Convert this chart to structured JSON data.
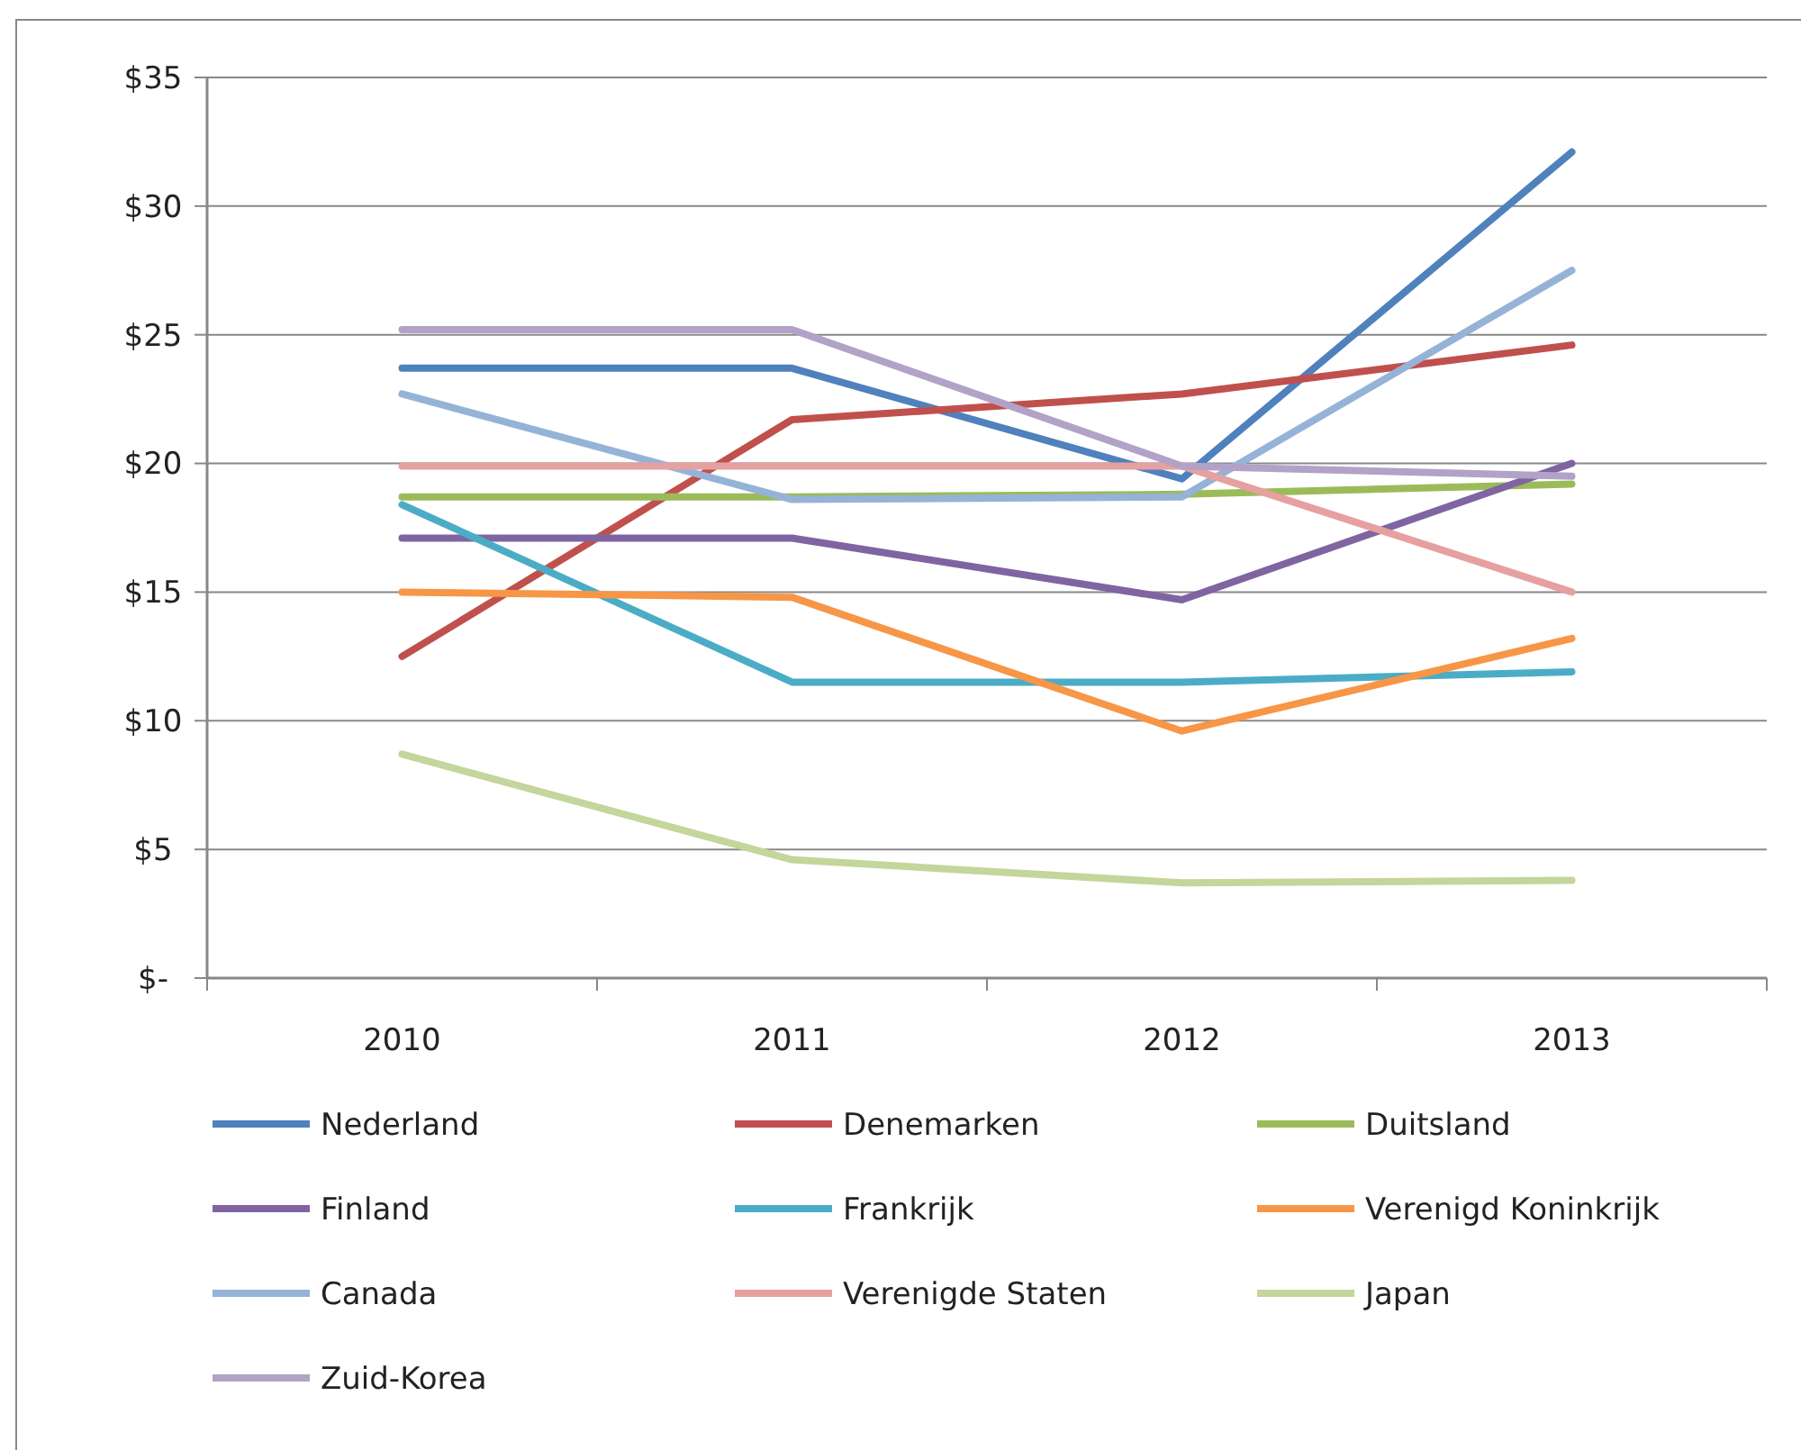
{
  "chart_data": {
    "type": "line",
    "categories": [
      "2010",
      "2011",
      "2012",
      "2013"
    ],
    "ylim": [
      0,
      35
    ],
    "yticks": [
      {
        "value": 0,
        "label": "$-"
      },
      {
        "value": 5,
        "label": "$5"
      },
      {
        "value": 10,
        "label": "$10"
      },
      {
        "value": 15,
        "label": "$15"
      },
      {
        "value": 20,
        "label": "$20"
      },
      {
        "value": 25,
        "label": "$25"
      },
      {
        "value": 30,
        "label": "$30"
      },
      {
        "value": 35,
        "label": "$35"
      }
    ],
    "grid": "y",
    "legend": "bottom",
    "marker": "none",
    "line_style": "solid",
    "series": [
      {
        "name": "Nederland",
        "color": "#4f81bd",
        "values": [
          23.7,
          23.7,
          19.4,
          32.1
        ]
      },
      {
        "name": "Denemarken",
        "color": "#c0504d",
        "values": [
          12.5,
          21.7,
          22.7,
          24.6
        ]
      },
      {
        "name": "Duitsland",
        "color": "#9bbb59",
        "values": [
          18.7,
          18.7,
          18.8,
          19.2
        ]
      },
      {
        "name": "Finland",
        "color": "#8064a2",
        "values": [
          17.1,
          17.1,
          14.7,
          20.0
        ]
      },
      {
        "name": "Frankrijk",
        "color": "#4bacc6",
        "values": [
          18.4,
          11.5,
          11.5,
          11.9
        ]
      },
      {
        "name": "Verenigd Koninkrijk",
        "color": "#f79646",
        "values": [
          15.0,
          14.8,
          9.6,
          13.2
        ]
      },
      {
        "name": "Canada",
        "color": "#95b3d7",
        "values": [
          22.7,
          18.6,
          18.7,
          27.5
        ]
      },
      {
        "name": "Verenigde Staten",
        "color": "#e6a0a0",
        "values": [
          19.9,
          19.9,
          19.9,
          15.0
        ]
      },
      {
        "name": "Japan",
        "color": "#c3d69b",
        "values": [
          8.7,
          4.6,
          3.7,
          3.8
        ]
      },
      {
        "name": "Zuid-Korea",
        "color": "#b3a2c7",
        "values": [
          25.2,
          25.2,
          19.9,
          19.5
        ]
      }
    ]
  }
}
